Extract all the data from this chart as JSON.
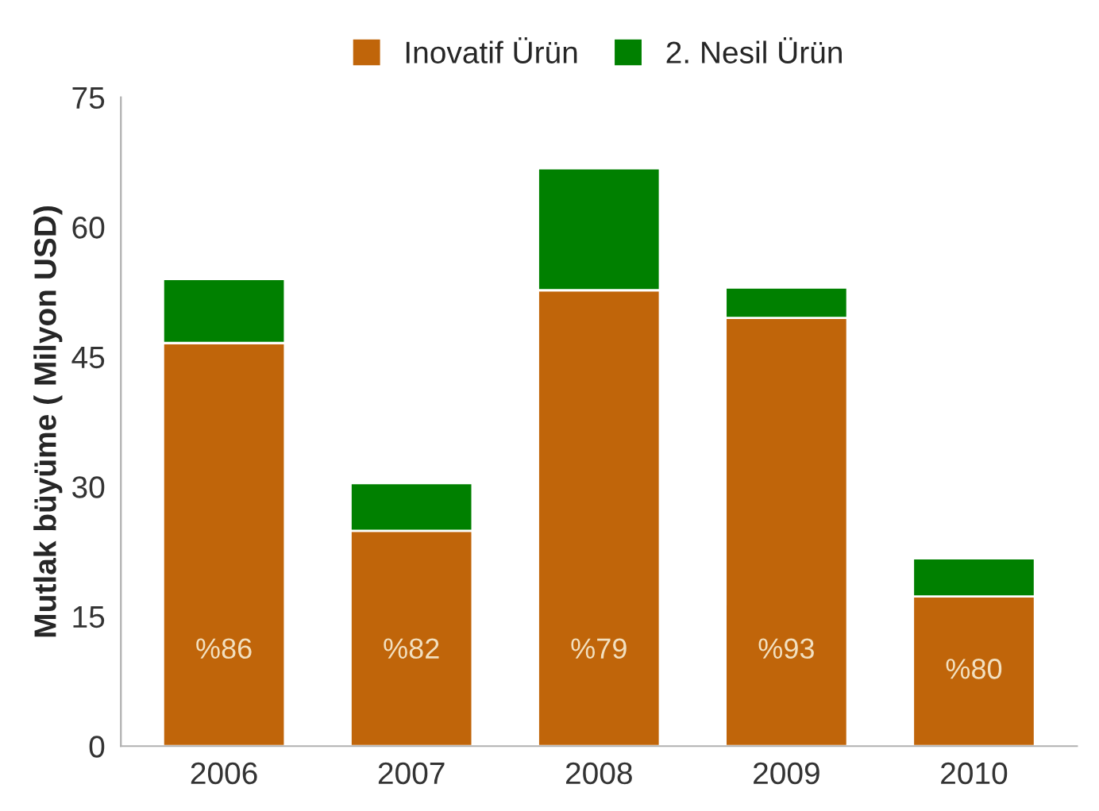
{
  "chart_data": {
    "type": "bar",
    "stacked": true,
    "categories": [
      "2006",
      "2007",
      "2008",
      "2009",
      "2010"
    ],
    "ylabel": "Mutlak büyüme ( Milyon USD)",
    "ylim": [
      0,
      75
    ],
    "yticks": [
      0,
      15,
      30,
      45,
      60,
      75
    ],
    "grid": false,
    "legend": "top",
    "annotations": [
      "%86",
      "%82",
      "%79",
      "%93",
      "%80"
    ],
    "series": [
      {
        "name": "Inovatif Ürün",
        "color": "#c0650a",
        "values": [
          46.6,
          24.9,
          52.7,
          49.5,
          17.3
        ]
      },
      {
        "name": "2. Nesil Ürün",
        "color": "#008000",
        "values": [
          7.4,
          5.5,
          14.1,
          3.5,
          4.4
        ]
      }
    ]
  }
}
